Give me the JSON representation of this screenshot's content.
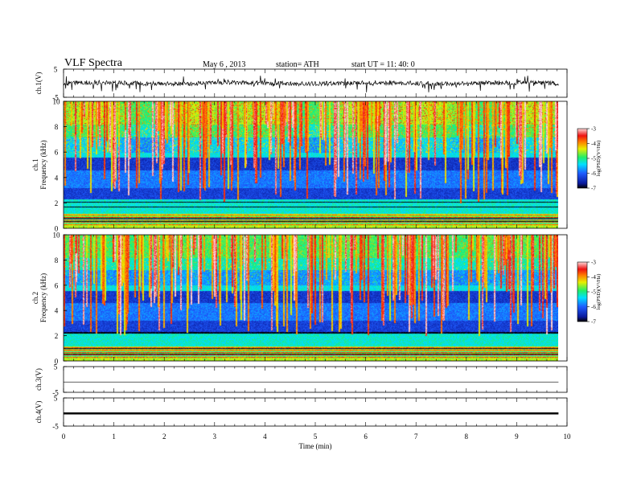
{
  "header": {
    "title": "VLF  Spectra",
    "date": "May 6  , 2013",
    "station": "station= ATH",
    "start": "start  UT  =    11: 40: 0"
  },
  "chart_data": [
    {
      "type": "line",
      "panel": "ch1-waveform",
      "ylabel": "ch.1(V)",
      "ylim": [
        -5,
        5
      ],
      "yticks": [
        "5",
        "-5"
      ],
      "note_shape": "noisy trace centred near 0 V with amplitude about 1 V and frequent short negative spikes"
    },
    {
      "type": "heatmap",
      "panel": "ch1-spectrogram",
      "ylabel": [
        "ch.1",
        "Frequency  (kHz)"
      ],
      "ylim": [
        0,
        10
      ],
      "yticks": [
        "0",
        "2",
        "4",
        "6",
        "8",
        "10"
      ],
      "colorbar": {
        "label": "log(PSD)(V²/Hz)",
        "range": [
          -7,
          -3
        ],
        "ticks": [
          "-3",
          "-4",
          "-5",
          "-6",
          "-7"
        ]
      }
    },
    {
      "type": "heatmap",
      "panel": "ch2-spectrogram",
      "ylabel": [
        "ch.2",
        "Frequency  (kHz)"
      ],
      "ylim": [
        0,
        10
      ],
      "yticks": [
        "0",
        "2",
        "4",
        "6",
        "8",
        "10"
      ],
      "colorbar": {
        "label": "log(PSD)(V²/Hz)",
        "range": [
          -7,
          -3
        ],
        "ticks": [
          "-3",
          "-4",
          "-5",
          "-6",
          "-7"
        ]
      }
    },
    {
      "type": "line",
      "panel": "ch3-waveform",
      "ylabel": "ch.3(V)",
      "ylim": [
        -5,
        5
      ],
      "yticks": [
        "5",
        "-5"
      ],
      "level": -1
    },
    {
      "type": "line",
      "panel": "ch4-waveform",
      "ylabel": "ch.4(V)",
      "ylim": [
        -5,
        5
      ],
      "yticks": [
        "5",
        "-5"
      ],
      "level": -0.5
    }
  ],
  "time_axis": {
    "xlabel": "Time  (min)",
    "xlim": [
      0,
      10
    ],
    "ticks": [
      "0",
      "1",
      "2",
      "3",
      "4",
      "5",
      "6",
      "7",
      "8",
      "9",
      "10"
    ],
    "data_end": 9.83
  }
}
